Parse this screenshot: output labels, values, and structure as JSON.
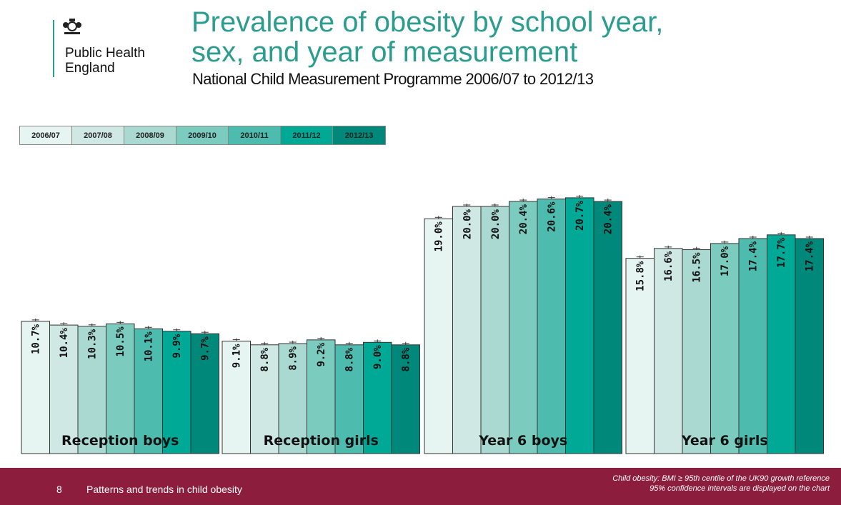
{
  "header": {
    "org_name": "Public Health England",
    "title_line1": "Prevalence of obesity by school year,",
    "title_line2": "sex, and year of measurement",
    "subtitle": "National Child Measurement Programme 2006/07 to 2012/13"
  },
  "colors": {
    "title": "#2a9d8f",
    "footer_bg": "#8c1d3c",
    "series": [
      "#e6f4f2",
      "#cfe8e4",
      "#a9d9d1",
      "#7ccbbf",
      "#4dbbad",
      "#00a896",
      "#00897b"
    ]
  },
  "chart_data": {
    "type": "bar",
    "categories": [
      "Reception boys",
      "Reception girls",
      "Year 6 boys",
      "Year 6 girls"
    ],
    "series": [
      {
        "name": "2006/07",
        "values": [
          10.7,
          9.1,
          19.0,
          15.8
        ]
      },
      {
        "name": "2007/08",
        "values": [
          10.4,
          8.8,
          20.0,
          16.6
        ]
      },
      {
        "name": "2008/09",
        "values": [
          10.3,
          8.9,
          20.0,
          16.5
        ]
      },
      {
        "name": "2009/10",
        "values": [
          10.5,
          9.2,
          20.4,
          17.0
        ]
      },
      {
        "name": "2010/11",
        "values": [
          10.1,
          8.8,
          20.6,
          17.4
        ]
      },
      {
        "name": "2011/12",
        "values": [
          9.9,
          9.0,
          20.7,
          17.7
        ]
      },
      {
        "name": "2012/13",
        "values": [
          9.7,
          8.8,
          20.4,
          17.4
        ]
      }
    ],
    "data_labels": [
      [
        "10.7%",
        "9.1%",
        "19.0%",
        "15.8%"
      ],
      [
        "10.4%",
        "8.8%",
        "20.0%",
        "16.6%"
      ],
      [
        "10.3%",
        "8.9%",
        "20.0%",
        "16.5%"
      ],
      [
        "10.5%",
        "9.2%",
        "20.4%",
        "17.0%"
      ],
      [
        "10.1%",
        "8.8%",
        "20.6%",
        "17.4%"
      ],
      [
        "9.9%",
        "9.0%",
        "20.7%",
        "17.7%"
      ],
      [
        "9.7%",
        "8.8%",
        "20.4%",
        "17.4%"
      ]
    ],
    "legend_position": "top-left",
    "error_bars": true,
    "grid": false,
    "ylim": [
      0,
      22
    ],
    "xlabel": "",
    "ylabel": ""
  },
  "footer": {
    "page_number": "8",
    "text": "Patterns and trends in child obesity",
    "note_line1": "Child obesity: BMI ≥ 95th centile of the UK90 growth reference",
    "note_line2": "95% confidence intervals are displayed on the chart"
  }
}
